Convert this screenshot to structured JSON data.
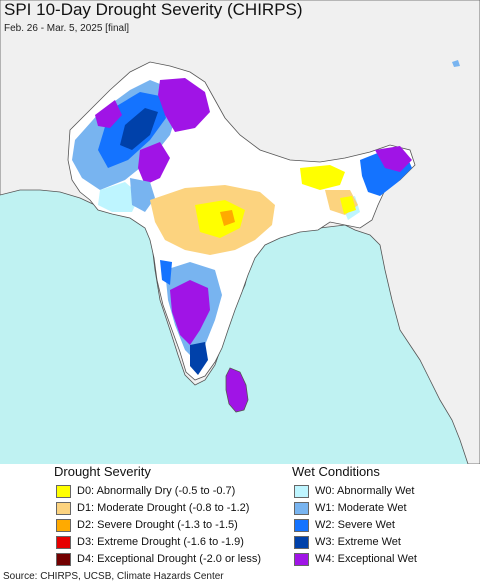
{
  "title": "SPI 10-Day Drought Severity (CHIRPS)",
  "subtitle": "Feb. 26 - Mar. 5, 2025 [final]",
  "source": "Source: CHIRPS, UCSB, Climate Hazards Center",
  "map_colors": {
    "ocean": "#bff2f2",
    "land_outside": "#f0f0f0",
    "land_normal": "#ffffff",
    "border": "#555555"
  },
  "drought_legend": {
    "heading": "Drought Severity",
    "items": [
      {
        "label": "D0: Abnormally Dry (-0.5 to -0.7)",
        "color": "#ffff00"
      },
      {
        "label": "D1: Moderate Drought (-0.8 to -1.2)",
        "color": "#fcd37f"
      },
      {
        "label": "D2: Severe Drought (-1.3 to -1.5)",
        "color": "#ffaa00"
      },
      {
        "label": "D3: Extreme Drought (-1.6 to -1.9)",
        "color": "#e60000"
      },
      {
        "label": "D4: Exceptional Drought (-2.0 or less)",
        "color": "#730000"
      }
    ]
  },
  "wet_legend": {
    "heading": "Wet Conditions",
    "items": [
      {
        "label": "W0: Abnormally Wet",
        "color": "#bef5ff"
      },
      {
        "label": "W1: Moderate Wet",
        "color": "#78b4f0"
      },
      {
        "label": "W2: Severe Wet",
        "color": "#1473ff"
      },
      {
        "label": "W3: Extreme Wet",
        "color": "#0041aa"
      },
      {
        "label": "W4: Exceptional Wet",
        "color": "#a014e6"
      }
    ]
  }
}
